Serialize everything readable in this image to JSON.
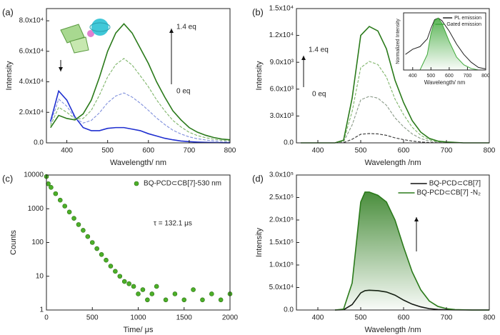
{
  "chart_data": [
    {
      "type": "line",
      "panel": "(a)",
      "xlabel": "Wavelength/ nm",
      "ylabel": "Intensity",
      "xlim": [
        350,
        800
      ],
      "xticks": [
        400,
        500,
        600,
        700,
        800
      ],
      "ylim": [
        0,
        88000
      ],
      "yticks": [
        {
          "value": 0,
          "label": "0.0"
        },
        {
          "value": 20000,
          "label": "2.0x10⁴"
        },
        {
          "value": 40000,
          "label": "4.0x10⁴"
        },
        {
          "value": 60000,
          "label": "6.0x10⁴"
        },
        {
          "value": 80000,
          "label": "8.0x10⁴"
        }
      ],
      "annotations": [
        "1.4 eq",
        "0 eq"
      ],
      "x": [
        360,
        380,
        400,
        420,
        440,
        460,
        480,
        500,
        520,
        540,
        560,
        580,
        600,
        620,
        640,
        660,
        680,
        700,
        720,
        740,
        760,
        780,
        800
      ],
      "series": [
        {
          "color": "#1f2fd0",
          "dashed": false,
          "values": [
            14000,
            34000,
            28000,
            17000,
            10000,
            8000,
            8000,
            9500,
            10000,
            10000,
            9000,
            8000,
            6000,
            4500,
            3000,
            2000,
            1200,
            800,
            500,
            300,
            200,
            100,
            50
          ]
        },
        {
          "color": "#7f8fdc",
          "dashed": true,
          "values": [
            12700,
            28700,
            24000,
            16300,
            13000,
            14700,
            19700,
            26300,
            30700,
            32700,
            30000,
            26000,
            21300,
            16300,
            12000,
            8300,
            5800,
            3900,
            2700,
            1900,
            1300,
            900,
            700
          ]
        },
        {
          "color": "#7fb56a",
          "dashed": true,
          "values": [
            11300,
            23300,
            20000,
            15700,
            16000,
            21300,
            31300,
            43200,
            51300,
            55300,
            51000,
            44000,
            36700,
            28200,
            21000,
            14700,
            10400,
            6900,
            4800,
            3400,
            2400,
            1700,
            1400
          ]
        },
        {
          "color": "#2a7a1a",
          "dashed": false,
          "values": [
            10000,
            18000,
            16000,
            15000,
            19000,
            28000,
            43000,
            60000,
            72000,
            78000,
            72000,
            62000,
            52000,
            40000,
            30000,
            21000,
            15000,
            10000,
            7000,
            5000,
            3500,
            2500,
            2000
          ]
        }
      ]
    },
    {
      "type": "line",
      "panel": "(b)",
      "xlabel": "Wavelength /nm",
      "ylabel": "Intensity",
      "xlim": [
        350,
        800
      ],
      "xticks": [
        400,
        500,
        600,
        700,
        800
      ],
      "ylim": [
        0,
        15000
      ],
      "yticks": [
        {
          "value": 0,
          "label": "0.0"
        },
        {
          "value": 3000,
          "label": "3.0x10³"
        },
        {
          "value": 6000,
          "label": "6.0x10³"
        },
        {
          "value": 9000,
          "label": "9.0x10³"
        },
        {
          "value": 12000,
          "label": "1.2x10⁴"
        },
        {
          "value": 15000,
          "label": "1.5x10⁴"
        }
      ],
      "annotations": [
        "1.4 eq",
        "0 eq"
      ],
      "x": [
        360,
        400,
        440,
        460,
        480,
        500,
        520,
        540,
        560,
        580,
        600,
        620,
        640,
        660,
        680,
        700,
        740,
        800
      ],
      "series": [
        {
          "color": "#333333",
          "dashed": true,
          "values": [
            0,
            0,
            0,
            24,
            400,
            960,
            1040,
            1000,
            840,
            560,
            360,
            200,
            96,
            40,
            16,
            8,
            0,
            0
          ]
        },
        {
          "color": "#8a9a88",
          "dashed": true,
          "values": [
            0,
            0,
            0,
            120,
            2000,
            4800,
            5200,
            5000,
            4200,
            2800,
            1800,
            1000,
            480,
            200,
            80,
            40,
            0,
            0
          ]
        },
        {
          "color": "#7fb56a",
          "dashed": true,
          "values": [
            0,
            0,
            0,
            210,
            3500,
            8400,
            9100,
            8750,
            7350,
            4900,
            3150,
            1750,
            840,
            350,
            140,
            70,
            0,
            0
          ]
        },
        {
          "color": "#2a7a1a",
          "dashed": false,
          "values": [
            0,
            0,
            0,
            300,
            5000,
            12000,
            13000,
            12500,
            10500,
            7000,
            4500,
            2500,
            1200,
            500,
            200,
            100,
            0,
            0
          ]
        }
      ]
    },
    {
      "type": "line",
      "xlabel": "Wavelength/ nm",
      "ylabel": "Normalized Intensity",
      "legend": "upper right",
      "xlim": [
        350,
        800
      ],
      "xticks": [
        400,
        500,
        600,
        700,
        800
      ],
      "ylim": [
        0,
        1.1
      ],
      "x": [
        360,
        400,
        440,
        480,
        500,
        520,
        540,
        560,
        600,
        640,
        680,
        720,
        760,
        800
      ],
      "series": [
        {
          "name": "PL emission",
          "color": "#222222",
          "values": [
            0.3,
            0.4,
            0.45,
            0.6,
            0.8,
            0.97,
            1.0,
            0.95,
            0.75,
            0.5,
            0.3,
            0.15,
            0.05,
            0.02
          ]
        },
        {
          "name": "Gated emission",
          "color": "#3fa83a",
          "fill": true,
          "values": [
            0,
            0,
            0,
            0.3,
            0.7,
            0.95,
            1.0,
            0.9,
            0.55,
            0.25,
            0.1,
            0.03,
            0,
            0
          ]
        }
      ]
    },
    {
      "type": "scatter",
      "panel": "(c)",
      "xlabel": "Time/ μs",
      "ylabel": "Counts",
      "log_y": true,
      "legend": "upper right",
      "xlim": [
        0,
        2000
      ],
      "xticks": [
        0,
        500,
        1000,
        1500,
        2000
      ],
      "ylim": [
        1,
        10000
      ],
      "yticks": [
        1,
        10,
        100,
        1000,
        10000
      ],
      "annotations": [
        "τ = 132.1 μs"
      ],
      "x": [
        0,
        20,
        50,
        100,
        150,
        200,
        250,
        300,
        350,
        400,
        450,
        500,
        550,
        600,
        650,
        700,
        750,
        800,
        850,
        900,
        950,
        1000,
        1050,
        1100,
        1150,
        1200,
        1300,
        1400,
        1500,
        1600,
        1700,
        1800,
        1900,
        2000
      ],
      "series": [
        {
          "name": "BQ-PCD⊂CB[7]-530 nm",
          "color": "#4caf28",
          "values": [
            9000,
            5500,
            4300,
            2800,
            1800,
            1200,
            800,
            520,
            340,
            230,
            150,
            100,
            66,
            44,
            30,
            20,
            14,
            10,
            7,
            6,
            5,
            3,
            4,
            2,
            3,
            5,
            2,
            3,
            2,
            4,
            2,
            3,
            2,
            3
          ]
        }
      ]
    },
    {
      "type": "line",
      "panel": "(d)",
      "xlabel": "Wavelength /nm",
      "ylabel": "Intensity",
      "legend": "upper right",
      "xlim": [
        350,
        800
      ],
      "xticks": [
        400,
        500,
        600,
        700,
        800
      ],
      "ylim": [
        0,
        300000
      ],
      "yticks": [
        {
          "value": 0,
          "label": "0.0"
        },
        {
          "value": 50000,
          "label": "5.0x10⁴"
        },
        {
          "value": 100000,
          "label": "1.0x10⁵"
        },
        {
          "value": 150000,
          "label": "1.5x10⁵"
        },
        {
          "value": 200000,
          "label": "2.0x10⁵"
        },
        {
          "value": 250000,
          "label": "2.5x10⁵"
        },
        {
          "value": 300000,
          "label": "3.0x10⁵"
        }
      ],
      "x": [
        440,
        460,
        480,
        500,
        510,
        520,
        540,
        560,
        580,
        600,
        620,
        640,
        660,
        680,
        700,
        720,
        760,
        800
      ],
      "series": [
        {
          "name": "BQ-PCD⊂CB[7]",
          "color": "#111111",
          "values": [
            0,
            500,
            12000,
            38000,
            43000,
            44000,
            43000,
            40000,
            33000,
            22000,
            13000,
            7000,
            3000,
            1200,
            500,
            200,
            0,
            0
          ]
        },
        {
          "name": "BQ-PCD⊂CB[7] -N₂",
          "color": "#2a7a1a",
          "fill": true,
          "values": [
            0,
            2000,
            60000,
            240000,
            262000,
            262000,
            255000,
            240000,
            200000,
            140000,
            85000,
            45000,
            20000,
            8000,
            3000,
            1000,
            0,
            0
          ]
        }
      ]
    }
  ]
}
